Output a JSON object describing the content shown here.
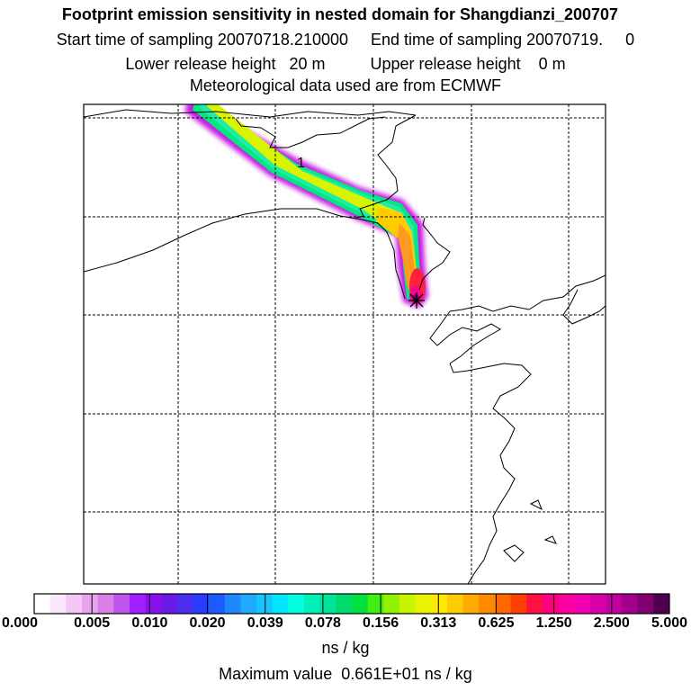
{
  "header": {
    "title": "Footprint emission sensitivity in nested domain for Shangdianzi_200707",
    "sampling": "Start time of sampling 20070718.210000     End time of sampling 20070719.     0",
    "release": "Lower release height   20 m          Upper release height    0 m",
    "meteo": "Meteorological data used are from ECMWF"
  },
  "map": {
    "contour_label": "1",
    "receptor_marker": "Shangdianzi receptor"
  },
  "legend": {
    "tick_labels": [
      "0.000",
      "0.005",
      "0.010",
      "0.020",
      "0.039",
      "0.078",
      "0.156",
      "0.313",
      "0.625",
      "1.250",
      "2.500",
      "5.000"
    ],
    "colors": [
      "#ffffff",
      "#fbe6fb",
      "#f3c6f3",
      "#e8a4ec",
      "#d980e8",
      "#c055ee",
      "#a020ff",
      "#8a10f0",
      "#6a1ae6",
      "#4b2ef0",
      "#2a3cff",
      "#1c5cff",
      "#1e88ff",
      "#20aaff",
      "#15c6ff",
      "#00e8ff",
      "#00ffe0",
      "#00f0b8",
      "#00e59a",
      "#00d870",
      "#00e040",
      "#40ee10",
      "#90f200",
      "#c8f400",
      "#e8f400",
      "#ffe800",
      "#ffcc00",
      "#ffaa00",
      "#ff8a00",
      "#ff6800",
      "#ff4000",
      "#ff1040",
      "#ff0080",
      "#ff00a0",
      "#f000b0",
      "#d800a8",
      "#c000a0",
      "#a0008a",
      "#800070",
      "#500050"
    ],
    "units": "ns / kg"
  },
  "footer": {
    "max_value": "Maximum value  0.661E+01 ns / kg"
  }
}
